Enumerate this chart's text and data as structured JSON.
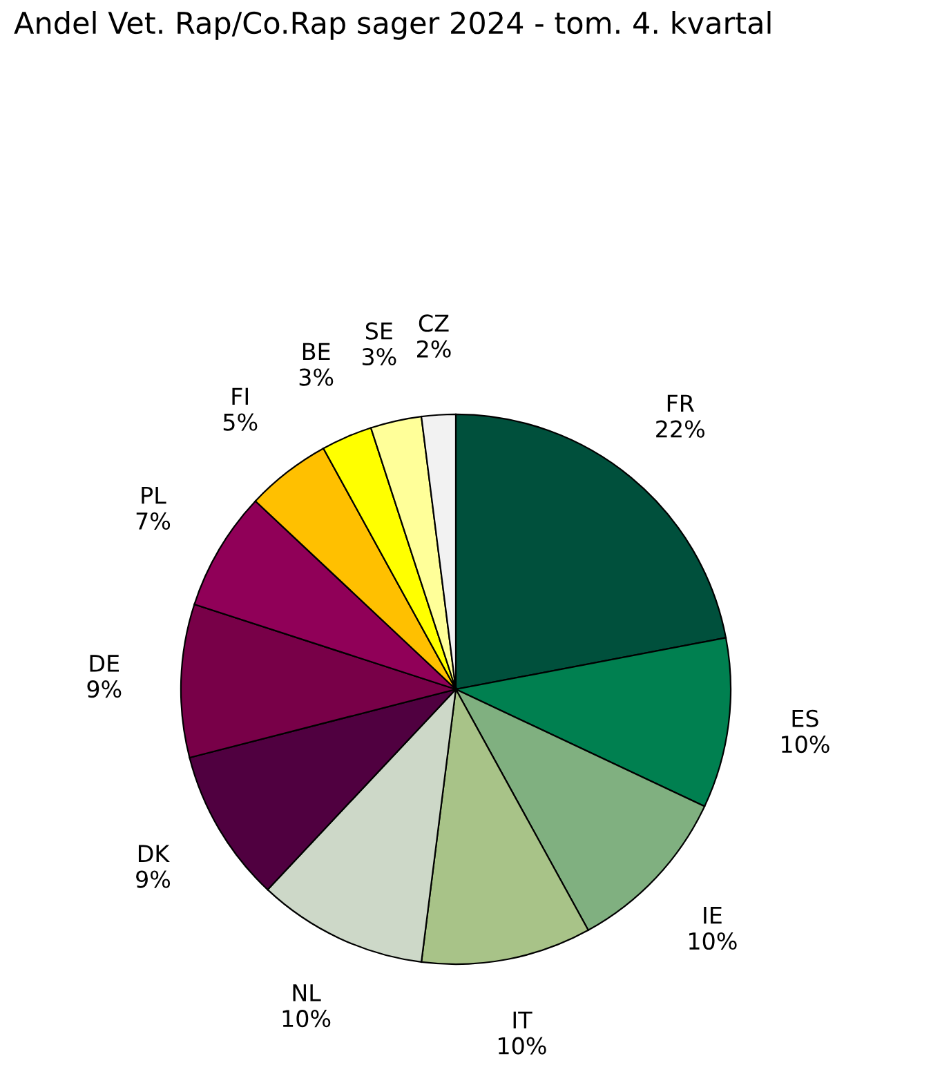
{
  "chart_data": {
    "type": "pie",
    "title": "Andel Vet. Rap/Co.Rap sager 2024 - tom. 4. kvartal",
    "categories": [
      "FR",
      "ES",
      "IE",
      "IT",
      "NL",
      "DK",
      "DE",
      "PL",
      "FI",
      "BE",
      "SE",
      "CZ"
    ],
    "values": [
      22,
      10,
      10,
      10,
      10,
      9,
      9,
      7,
      5,
      3,
      3,
      2
    ],
    "value_labels": [
      "22%",
      "10%",
      "10%",
      "10%",
      "10%",
      "9%",
      "9%",
      "7%",
      "5%",
      "3%",
      "3%",
      "2%"
    ],
    "colors": [
      "#00503c",
      "#008050",
      "#80b080",
      "#a8c388",
      "#cdd8c8",
      "#500040",
      "#780048",
      "#900058",
      "#ffc000",
      "#ffff00",
      "#ffff99",
      "#f2f2f2"
    ],
    "legend": false
  }
}
